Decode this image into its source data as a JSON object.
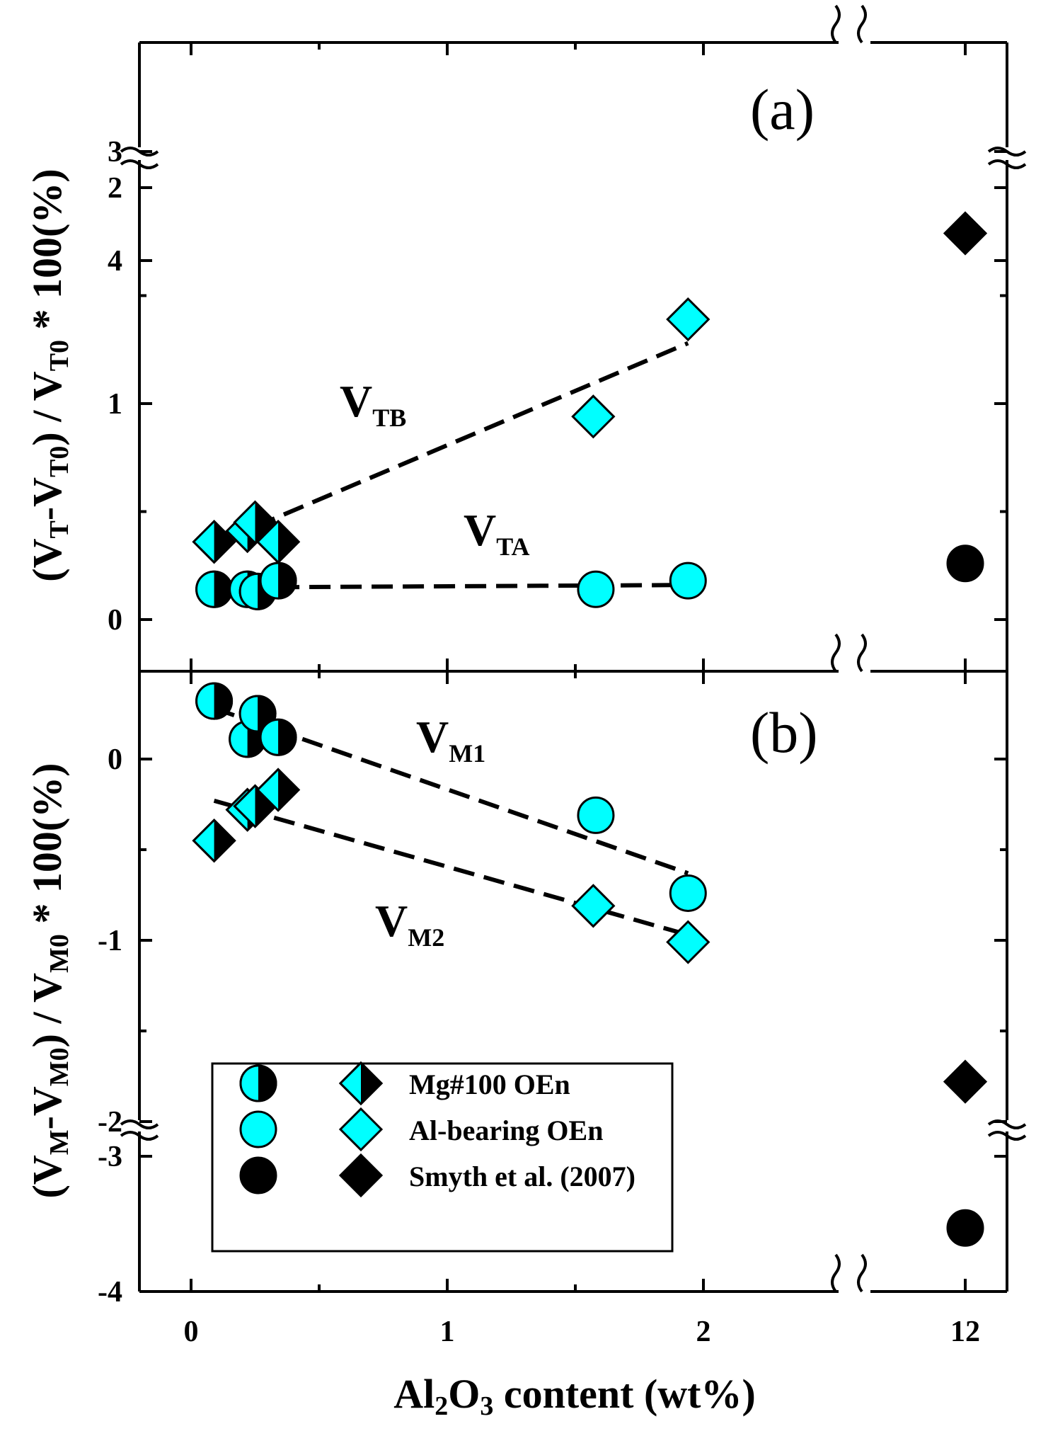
{
  "chart_data": {
    "type": "scatter",
    "xlabel": "Al2O3 content (wt%)",
    "xlabel_parts": {
      "a": "Al",
      "sub1": "2",
      "b": "O",
      "sub2": "3",
      "c": " content (wt%)"
    },
    "x_ticks": [
      "0",
      "1",
      "2",
      "12"
    ],
    "x_range_main": [
      -0.2,
      2.45
    ],
    "x_break_value": 12,
    "colors": {
      "cyan": "#00ffff",
      "black": "#000000"
    },
    "panels": [
      {
        "id": "a",
        "label": "(a)",
        "ylabel_parts": {
          "p1": "(V",
          "s1": "T",
          "p2": "-V",
          "s2": "T0",
          "p3": ") / V",
          "s3": "T0",
          "p4": " * 100(%)"
        },
        "y_range_main": [
          -0.2,
          2.0
        ],
        "y_range_upper": [
          3,
          4
        ],
        "y_ticks": [
          "0",
          "1",
          "2",
          "3",
          "4"
        ],
        "series": [
          {
            "name": "VTB",
            "label_main": "V",
            "label_sub": "TB",
            "marker": "diamond",
            "points": [
              {
                "x": 0.09,
                "y": 0.36,
                "fill": "half"
              },
              {
                "x": 0.22,
                "y": 0.41,
                "fill": "half"
              },
              {
                "x": 0.25,
                "y": 0.45,
                "fill": "half"
              },
              {
                "x": 0.34,
                "y": 0.36,
                "fill": "half"
              },
              {
                "x": 1.57,
                "y": 0.94,
                "fill": "cyan"
              },
              {
                "x": 1.94,
                "y": 1.39,
                "fill": "cyan"
              },
              {
                "x": 12,
                "y": 3.75,
                "fill": "black"
              }
            ],
            "trendline": {
              "x": [
                0.25,
                1.94
              ],
              "y": [
                0.43,
                1.28
              ]
            }
          },
          {
            "name": "VTA",
            "label_main": "V",
            "label_sub": "TA",
            "marker": "circle",
            "points": [
              {
                "x": 0.09,
                "y": 0.14,
                "fill": "half"
              },
              {
                "x": 0.22,
                "y": 0.14,
                "fill": "half"
              },
              {
                "x": 0.26,
                "y": 0.13,
                "fill": "half"
              },
              {
                "x": 0.34,
                "y": 0.18,
                "fill": "half"
              },
              {
                "x": 1.58,
                "y": 0.14,
                "fill": "cyan"
              },
              {
                "x": 1.94,
                "y": 0.18,
                "fill": "cyan"
              },
              {
                "x": 12,
                "y": 0.26,
                "fill": "black"
              }
            ],
            "trendline": {
              "x": [
                0.34,
                1.94
              ],
              "y": [
                0.15,
                0.16
              ]
            }
          }
        ]
      },
      {
        "id": "b",
        "label": "(b)",
        "ylabel_parts": {
          "p1": "(V",
          "s1": "M",
          "p2": "-V",
          "s2": "M0",
          "p3": ") / V",
          "s3": "M0",
          "p4": " * 100(%)"
        },
        "y_range_main": [
          -2.0,
          0.5
        ],
        "y_range_lower": [
          -4,
          -3
        ],
        "y_ticks": [
          "0",
          "-1",
          "-2",
          "-3",
          "-4"
        ],
        "series": [
          {
            "name": "VM1",
            "label_main": "V",
            "label_sub": "M1",
            "marker": "circle",
            "points": [
              {
                "x": 0.09,
                "y": 0.32,
                "fill": "half"
              },
              {
                "x": 0.22,
                "y": 0.11,
                "fill": "half"
              },
              {
                "x": 0.26,
                "y": 0.25,
                "fill": "half"
              },
              {
                "x": 0.34,
                "y": 0.12,
                "fill": "half"
              },
              {
                "x": 1.58,
                "y": -0.31,
                "fill": "cyan"
              },
              {
                "x": 1.94,
                "y": -0.74,
                "fill": "cyan"
              },
              {
                "x": 12,
                "y": -3.53,
                "fill": "black"
              }
            ],
            "trendline": {
              "x": [
                0.09,
                1.94
              ],
              "y": [
                0.28,
                -0.63
              ]
            }
          },
          {
            "name": "VM2",
            "label_main": "V",
            "label_sub": "M2",
            "marker": "diamond",
            "points": [
              {
                "x": 0.09,
                "y": -0.45,
                "fill": "half"
              },
              {
                "x": 0.22,
                "y": -0.28,
                "fill": "half"
              },
              {
                "x": 0.25,
                "y": -0.26,
                "fill": "half"
              },
              {
                "x": 0.34,
                "y": -0.17,
                "fill": "half"
              },
              {
                "x": 1.57,
                "y": -0.81,
                "fill": "cyan"
              },
              {
                "x": 1.94,
                "y": -1.01,
                "fill": "cyan"
              },
              {
                "x": 12,
                "y": -1.78,
                "fill": "black"
              }
            ],
            "trendline": {
              "x": [
                0.09,
                1.94
              ],
              "y": [
                -0.23,
                -0.97
              ]
            }
          }
        ]
      }
    ],
    "legend": {
      "placement": "bottom-left of panel (b)",
      "items": [
        {
          "label": "Mg#100 OEn",
          "fill": "half"
        },
        {
          "label": "Al-bearing OEn",
          "fill": "cyan"
        },
        {
          "label": "Smyth et al. (2007)",
          "fill": "black"
        }
      ]
    }
  }
}
